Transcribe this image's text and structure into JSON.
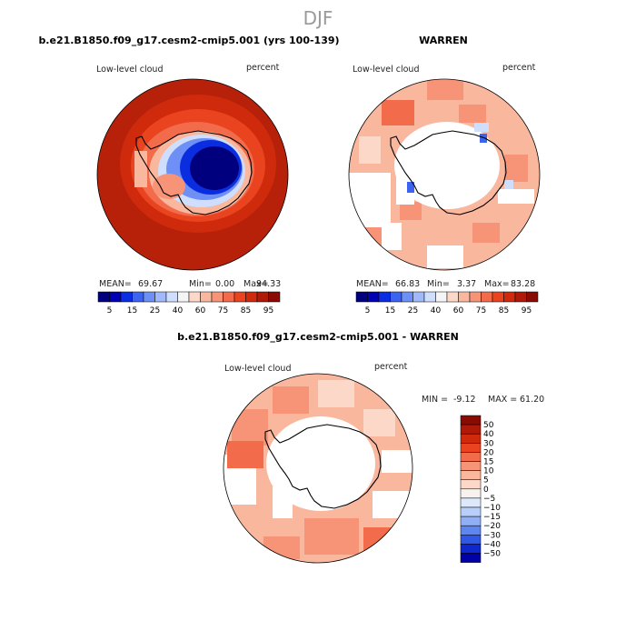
{
  "figure": {
    "season_title": "DJF"
  },
  "chart_data": [
    {
      "type": "heatmap",
      "projection": "south-polar-stereographic",
      "title": "b.e21.B1850.f09_g17.cesm2-cmip5.001 (yrs 100-139)",
      "variable_label": "Low-level cloud",
      "units_label": "percent",
      "stats": {
        "mean_label": "MEAN=",
        "mean": "69.67",
        "min_label": "Min=",
        "min": "0.00",
        "max_label": "Max=",
        "max": "94.33"
      },
      "colorbar": {
        "orientation": "horizontal",
        "levels": [
          5,
          10,
          15,
          20,
          25,
          30,
          40,
          50,
          60,
          70,
          75,
          80,
          85,
          90,
          95
        ],
        "tick_labels": [
          "5",
          "15",
          "25",
          "40",
          "60",
          "75",
          "85",
          "95"
        ],
        "colors": [
          "#00007f",
          "#0000b3",
          "#0b2de0",
          "#3c64f0",
          "#6e8ff5",
          "#a0b9fa",
          "#cfdefc",
          "#f5f5f5",
          "#fbd8c8",
          "#f9b79e",
          "#f79376",
          "#f26b4b",
          "#e9441f",
          "#cf2a0c",
          "#ae1908",
          "#8a0b04"
        ]
      }
    },
    {
      "type": "heatmap",
      "projection": "south-polar-stereographic",
      "title": "WARREN",
      "variable_label": "Low-level cloud",
      "units_label": "percent",
      "stats": {
        "mean_label": "MEAN=",
        "mean": "66.83",
        "min_label": "Min=",
        "min": "3.37",
        "max_label": "Max=",
        "max": "83.28"
      },
      "colorbar": {
        "orientation": "horizontal",
        "levels": [
          5,
          10,
          15,
          20,
          25,
          30,
          40,
          50,
          60,
          70,
          75,
          80,
          85,
          90,
          95
        ],
        "tick_labels": [
          "5",
          "15",
          "25",
          "40",
          "60",
          "75",
          "85",
          "95"
        ],
        "colors": [
          "#00007f",
          "#0000b3",
          "#0b2de0",
          "#3c64f0",
          "#6e8ff5",
          "#a0b9fa",
          "#cfdefc",
          "#f5f5f5",
          "#fbd8c8",
          "#f9b79e",
          "#f79376",
          "#f26b4b",
          "#e9441f",
          "#cf2a0c",
          "#ae1908",
          "#8a0b04"
        ]
      }
    },
    {
      "type": "heatmap",
      "projection": "south-polar-stereographic",
      "title": "b.e21.B1850.f09_g17.cesm2-cmip5.001 - WARREN",
      "variable_label": "Low-level cloud",
      "units_label": "percent",
      "stats": {
        "min_label": "MIN =",
        "min": "-9.12",
        "max_label": "MAX =",
        "max": "61.20"
      },
      "colorbar": {
        "orientation": "vertical",
        "levels": [
          -50,
          -40,
          -30,
          -20,
          -15,
          -10,
          -5,
          0,
          5,
          10,
          15,
          20,
          30,
          40,
          50
        ],
        "tick_labels": [
          "50",
          "40",
          "30",
          "20",
          "15",
          "10",
          "5",
          "0",
          "−5",
          "−10",
          "−15",
          "−20",
          "−30",
          "−40",
          "−50"
        ],
        "colors_top_to_bottom": [
          "#8a0b04",
          "#ae1908",
          "#cf2a0c",
          "#e9441f",
          "#f26b4b",
          "#f79376",
          "#f9b79e",
          "#fbd8c8",
          "#f7f2ee",
          "#dde8fb",
          "#b9cff9",
          "#8fb0f5",
          "#5f86ef",
          "#3158e5",
          "#0f27cf",
          "#0000a8"
        ]
      }
    }
  ]
}
